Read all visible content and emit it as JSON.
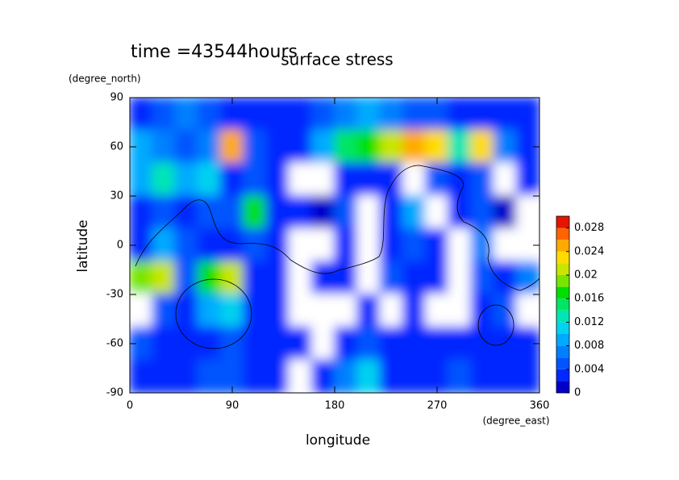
{
  "chart_data": {
    "type": "contour",
    "title": "surface stress",
    "subtitle": "time =43544hours",
    "x_label": "longitude",
    "y_label": "latitude",
    "x_units": "(degree_east)",
    "y_units": "(degree_north)",
    "xlim": [
      0,
      360
    ],
    "ylim": [
      -90,
      90
    ],
    "xticks": [
      0,
      90,
      180,
      270,
      360
    ],
    "yticks": [
      -90,
      -60,
      -30,
      0,
      30,
      60,
      90
    ],
    "x": [
      10,
      30,
      50,
      70,
      90,
      110,
      130,
      150,
      170,
      190,
      210,
      230,
      250,
      270,
      290,
      310,
      330,
      350
    ],
    "y": [
      80,
      60,
      40,
      20,
      0,
      -20,
      -40,
      -60,
      -80
    ],
    "z": [
      [
        0.004,
        0.006,
        0.008,
        0.006,
        0.004,
        0.004,
        0.004,
        0.004,
        0.006,
        0.008,
        0.01,
        0.008,
        0.006,
        0.006,
        0.004,
        0.004,
        0.004,
        0.004
      ],
      [
        0.01,
        0.008,
        0.006,
        0.008,
        0.026,
        0.006,
        0.004,
        0.004,
        0.01,
        0.016,
        0.018,
        0.022,
        0.026,
        0.024,
        0.014,
        0.024,
        0.008,
        0.004
      ],
      [
        0.01,
        0.014,
        0.01,
        0.012,
        0.004,
        0.006,
        0.004,
        0,
        0,
        0.004,
        0.004,
        0.004,
        0,
        0.006,
        0.004,
        0.006,
        0,
        0.004
      ],
      [
        0.004,
        0.006,
        0.004,
        0.006,
        0.006,
        0.018,
        0.004,
        0.004,
        0.002,
        0.006,
        0,
        0.004,
        0.01,
        0,
        0.004,
        0.006,
        0.002,
        0
      ],
      [
        0.004,
        0.01,
        0.006,
        0.004,
        0.004,
        0.006,
        0.004,
        0,
        0,
        0.004,
        0,
        0.004,
        0.006,
        0.004,
        0,
        0.008,
        0,
        0
      ],
      [
        0.02,
        0.022,
        0.006,
        0.018,
        0.022,
        0.004,
        0.004,
        0,
        0.004,
        0.004,
        0,
        0.006,
        0.004,
        0.004,
        0,
        0.006,
        0.004,
        0.008
      ],
      [
        0,
        0.006,
        0.004,
        0.01,
        0.012,
        0.004,
        0.004,
        0,
        0,
        0,
        0.004,
        0,
        0.004,
        0,
        0,
        0.004,
        0.006,
        0
      ],
      [
        0.006,
        0.004,
        0.004,
        0.004,
        0.006,
        0.004,
        0.004,
        0.004,
        0,
        0.004,
        0.006,
        0.004,
        0.004,
        0.004,
        0.004,
        0.004,
        0.004,
        0.004
      ],
      [
        0.004,
        0.004,
        0.004,
        0.006,
        0.006,
        0.004,
        0.004,
        0,
        0.004,
        0.008,
        0.012,
        0.004,
        0.004,
        0.004,
        0.006,
        0.004,
        0.004,
        0.004
      ]
    ],
    "colorbar": {
      "lim": [
        0,
        0.03
      ],
      "ticks": [
        0,
        0.004,
        0.008,
        0.012,
        0.016,
        0.02,
        0.024,
        0.028
      ],
      "levels": [
        0,
        0.002,
        0.004,
        0.006,
        0.008,
        0.01,
        0.012,
        0.014,
        0.016,
        0.018,
        0.02,
        0.022,
        0.024,
        0.026,
        0.028,
        0.03
      ],
      "colors": [
        "#0000c8",
        "#0028ff",
        "#0055ff",
        "#0080ff",
        "#00aaff",
        "#00d2f0",
        "#00e6b4",
        "#00e664",
        "#00e000",
        "#78e600",
        "#c8e600",
        "#ffdc00",
        "#ffaa00",
        "#ff6400",
        "#e61400"
      ],
      "zero_color": "#ffffff"
    }
  }
}
